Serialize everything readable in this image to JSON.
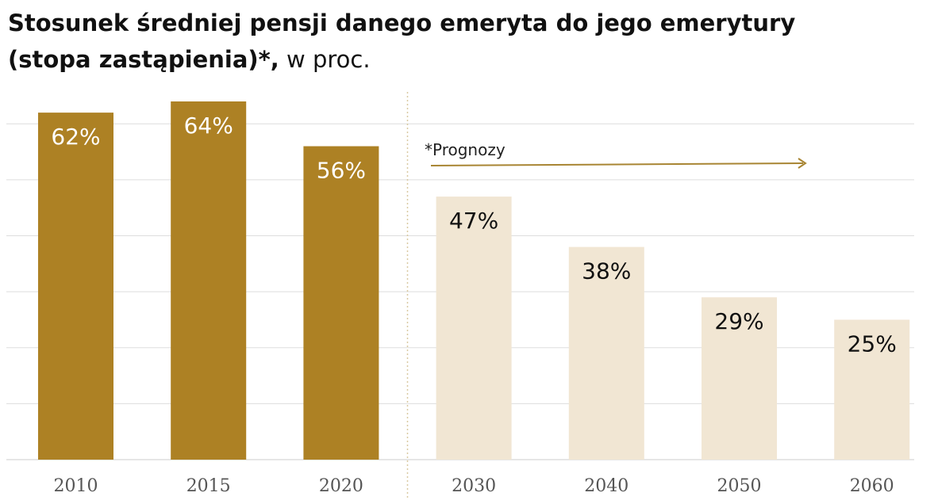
{
  "title": {
    "line1": "Stosunek średniej pensji danego emeryta do jego emerytury",
    "line2_bold": "(stopa zastąpienia)*,",
    "line2_light": "w proc."
  },
  "colors": {
    "actual": "#AD8124",
    "forecast": "#F1E6D3",
    "gridline": "#DDDDDD",
    "separator": "#D9C9A2",
    "arrow": "#A88533",
    "label_on_actual": "#FFFFFF",
    "label_on_forecast": "#111111"
  },
  "chart_data": {
    "type": "bar",
    "title": "Stosunek średniej pensji danego emeryta do jego emerytury (stopa zastąpienia)*, w proc.",
    "xlabel": "",
    "ylabel": "",
    "ylim": [
      0,
      64
    ],
    "grid": true,
    "categories": [
      "2010",
      "2015",
      "2020",
      "2030",
      "2040",
      "2050",
      "2060"
    ],
    "values": [
      62,
      64,
      56,
      47,
      38,
      29,
      25
    ],
    "value_labels": [
      "62%",
      "64%",
      "56%",
      "47%",
      "38%",
      "29%",
      "25%"
    ],
    "series_kind": [
      "actual",
      "actual",
      "actual",
      "forecast",
      "forecast",
      "forecast",
      "forecast"
    ],
    "annotation": {
      "text": "*Prognozy",
      "applies_from": "2030",
      "applies_to": "2060"
    }
  }
}
